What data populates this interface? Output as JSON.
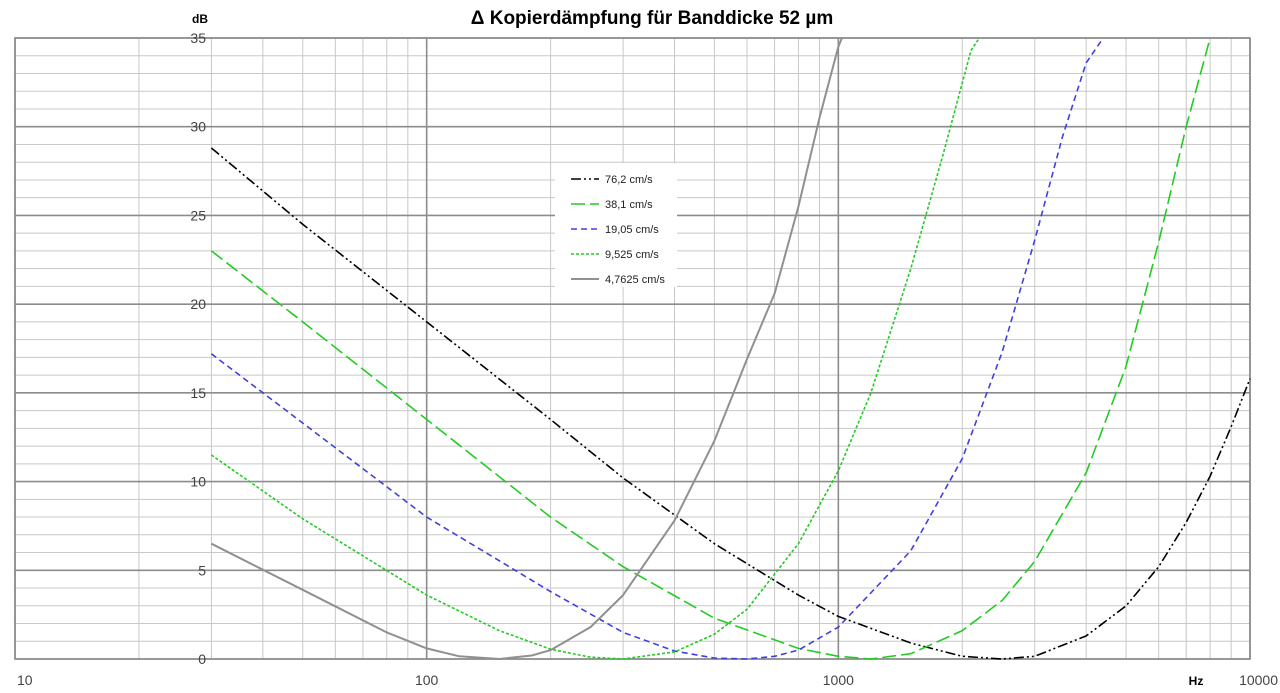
{
  "chart_data": {
    "type": "line",
    "title": "Δ Kopierdämpfung für Banddicke 52 µm",
    "ylabel": "dB",
    "xlabel": "Hz",
    "x_scale": "log",
    "xlim": [
      10,
      10000
    ],
    "ylim": [
      0,
      35
    ],
    "x_tick_labels": [
      "10",
      "100",
      "1000",
      "10000"
    ],
    "y_tick_labels": [
      "0",
      "5",
      "10",
      "15",
      "20",
      "25",
      "30",
      "35"
    ],
    "grid": true,
    "legend_position": "inside-center-left",
    "series": [
      {
        "name": "76,2 cm/s",
        "color": "#000000",
        "dash": "dash-dot-dot",
        "x": [
          30,
          50,
          100,
          200,
          300,
          500,
          800,
          1000,
          1500,
          2000,
          2500,
          3000,
          4000,
          5000,
          6000,
          7000,
          8000,
          9000,
          10000
        ],
        "y": [
          28.8,
          24.5,
          19,
          13.5,
          10.2,
          6.5,
          3.6,
          2.4,
          0.9,
          0.15,
          0.0,
          0.15,
          1.3,
          3.0,
          5.2,
          7.7,
          10.3,
          13.1,
          15.8
        ]
      },
      {
        "name": "38,1 cm/s",
        "color": "#22cc22",
        "dash": "long-dash",
        "x": [
          30,
          50,
          100,
          200,
          300,
          500,
          800,
          1000,
          1200,
          1500,
          2000,
          2500,
          3000,
          4000,
          5000,
          6000,
          7000,
          8000
        ],
        "y": [
          23,
          19,
          13.5,
          8,
          5.2,
          2.3,
          0.6,
          0.15,
          0.0,
          0.3,
          1.6,
          3.3,
          5.5,
          10.5,
          16.5,
          23.5,
          30,
          35
        ]
      },
      {
        "name": "19,05 cm/s",
        "color": "#4040e0",
        "dash": "dash",
        "x": [
          30,
          50,
          100,
          200,
          300,
          400,
          500,
          600,
          700,
          800,
          1000,
          1500,
          2000,
          2500,
          3000,
          3500,
          4000,
          4400
        ],
        "y": [
          17.2,
          13.3,
          8,
          3.8,
          1.5,
          0.45,
          0.05,
          0.0,
          0.15,
          0.5,
          1.8,
          6.1,
          11.3,
          17.3,
          23.6,
          29.4,
          33.6,
          35
        ]
      },
      {
        "name": "9,525 cm/s",
        "color": "#22cc22",
        "dash": "short-dash",
        "x": [
          30,
          50,
          100,
          150,
          200,
          250,
          300,
          400,
          500,
          600,
          800,
          1000,
          1200,
          1500,
          1800,
          2100,
          2200
        ],
        "y": [
          11.5,
          7.9,
          3.6,
          1.6,
          0.55,
          0.1,
          0.0,
          0.4,
          1.4,
          2.8,
          6.5,
          10.6,
          15,
          22,
          28.5,
          34.3,
          35
        ]
      },
      {
        "name": "4,7625 cm/s",
        "color": "#909090",
        "dash": "solid",
        "x": [
          30,
          50,
          80,
          100,
          120,
          150,
          180,
          200,
          250,
          300,
          400,
          500,
          600,
          700,
          800,
          900,
          1000,
          1020
        ],
        "y": [
          6.5,
          3.9,
          1.5,
          0.6,
          0.15,
          0.0,
          0.2,
          0.5,
          1.8,
          3.6,
          7.8,
          12.3,
          16.9,
          20.6,
          25.5,
          30.5,
          34.5,
          35
        ]
      }
    ]
  }
}
